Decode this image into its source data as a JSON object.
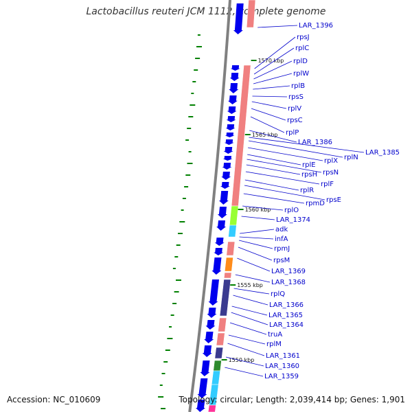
{
  "title": "Lactobacillus reuteri JCM 1112, complete genome",
  "footer": {
    "accession_text": "Accession: NC_010609",
    "stats_text": "Topology: circular; Length: 2,039,414 bp; Genes: 1,901"
  },
  "scale_labels": [
    "1570 kbp",
    "1565 kbp",
    "1560 kbp",
    "1555 kbp",
    "1550 kbp"
  ],
  "gene_labels": [
    "LAR_1396",
    "rpsJ",
    "rplC",
    "rplD",
    "rplW",
    "rplB",
    "rpsS",
    "rplV",
    "rpsC",
    "rplP",
    "LAR_1386",
    "LAR_1385",
    "rplN",
    "rplX",
    "rplE",
    "rpsN",
    "rpsH",
    "rplF",
    "rplR",
    "rpsE",
    "rpmD",
    "rplO",
    "LAR_1374",
    "adk",
    "infA",
    "rpmJ",
    "rpsM",
    "LAR_1369",
    "LAR_1368",
    "rplQ",
    "LAR_1366",
    "LAR_1365",
    "LAR_1364",
    "truA",
    "rplM",
    "LAR_1361",
    "LAR_1360",
    "LAR_1359"
  ],
  "colors": {
    "gene_blue": "#0000ee",
    "cog_pink": "#f08080",
    "label_blue": "#0000cc",
    "gc_green": "#008000",
    "backbone_gray": "#808080",
    "cog_light_green": "#99ff33",
    "cog_cyan": "#33ccff",
    "cog_orange": "#ff8c1a",
    "cog_indigo": "#3b3b8f",
    "cog_magenta": "#ff3399"
  }
}
